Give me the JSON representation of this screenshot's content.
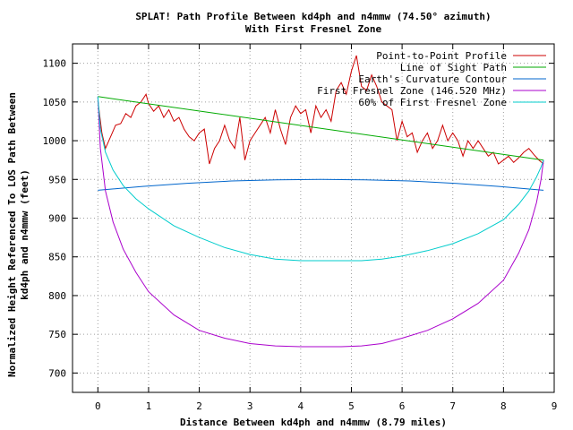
{
  "chart_data": {
    "type": "line",
    "title_line1": "SPLAT! Path Profile Between kd4ph and n4mmw (74.50° azimuth)",
    "title_line2": "With First Fresnel Zone",
    "xlabel": "Distance Between kd4ph and n4mmw (8.79 miles)",
    "ylabel_line1": "Normalized Height Referenced To LOS Path Between",
    "ylabel_line2": "kd4ph and n4mmw (feet)",
    "xlim": [
      -0.5,
      9
    ],
    "ylim": [
      675,
      1125
    ],
    "xticks": [
      "0",
      "1",
      "2",
      "3",
      "4",
      "5",
      "6",
      "7",
      "8",
      "9"
    ],
    "yticks": [
      "700",
      "750",
      "800",
      "850",
      "900",
      "950",
      "1000",
      "1050",
      "1100"
    ],
    "grid": true,
    "legend_position": "top-right",
    "series": [
      {
        "name": "Point-to-Point Profile",
        "color": "#cc0000",
        "x": [
          0.0,
          0.08,
          0.15,
          0.25,
          0.35,
          0.45,
          0.55,
          0.65,
          0.75,
          0.85,
          0.95,
          1.0,
          1.1,
          1.2,
          1.3,
          1.4,
          1.5,
          1.6,
          1.7,
          1.8,
          1.9,
          2.0,
          2.1,
          2.2,
          2.3,
          2.4,
          2.5,
          2.6,
          2.7,
          2.8,
          2.9,
          3.0,
          3.1,
          3.2,
          3.3,
          3.4,
          3.5,
          3.6,
          3.7,
          3.8,
          3.9,
          4.0,
          4.1,
          4.2,
          4.3,
          4.4,
          4.5,
          4.6,
          4.7,
          4.8,
          4.9,
          5.0,
          5.1,
          5.2,
          5.3,
          5.4,
          5.5,
          5.6,
          5.7,
          5.8,
          5.9,
          6.0,
          6.1,
          6.2,
          6.3,
          6.4,
          6.5,
          6.6,
          6.7,
          6.8,
          6.9,
          7.0,
          7.1,
          7.2,
          7.3,
          7.4,
          7.5,
          7.6,
          7.7,
          7.8,
          7.9,
          8.0,
          8.1,
          8.2,
          8.3,
          8.4,
          8.5,
          8.6,
          8.7,
          8.79
        ],
        "y": [
          1052,
          1010,
          990,
          1005,
          1020,
          1022,
          1035,
          1030,
          1045,
          1050,
          1060,
          1048,
          1038,
          1045,
          1030,
          1040,
          1025,
          1030,
          1015,
          1005,
          1000,
          1010,
          1015,
          970,
          990,
          1000,
          1020,
          1000,
          990,
          1030,
          975,
          1000,
          1010,
          1020,
          1030,
          1010,
          1040,
          1015,
          995,
          1030,
          1045,
          1035,
          1040,
          1010,
          1045,
          1030,
          1040,
          1025,
          1065,
          1075,
          1060,
          1090,
          1110,
          1070,
          1065,
          1085,
          1070,
          1050,
          1045,
          1040,
          1000,
          1025,
          1005,
          1010,
          985,
          1000,
          1010,
          990,
          1000,
          1020,
          1000,
          1010,
          1000,
          980,
          1000,
          990,
          1000,
          990,
          980,
          985,
          970,
          975,
          980,
          972,
          978,
          985,
          990,
          982,
          975,
          970
        ]
      },
      {
        "name": "Line of Sight Path",
        "color": "#00aa00",
        "x": [
          0.0,
          8.79
        ],
        "y": [
          1057,
          975
        ]
      },
      {
        "name": "Earth's Curvature Contour",
        "color": "#0066cc",
        "x": [
          0.0,
          0.88,
          1.76,
          2.64,
          3.52,
          4.4,
          5.27,
          6.15,
          7.03,
          7.91,
          8.79
        ],
        "y": [
          936,
          941,
          945,
          948,
          949.5,
          950,
          949.5,
          948,
          945,
          941,
          936
        ]
      },
      {
        "name": "First Fresnel Zone (146.520 MHz)",
        "color": "#aa00cc",
        "x": [
          0.0,
          0.05,
          0.15,
          0.3,
          0.5,
          0.75,
          1.0,
          1.5,
          2.0,
          2.5,
          3.0,
          3.5,
          4.0,
          4.4,
          4.8,
          5.2,
          5.6,
          6.0,
          6.5,
          7.0,
          7.5,
          8.0,
          8.3,
          8.5,
          8.65,
          8.74,
          8.79
        ],
        "y": [
          1057,
          990,
          935,
          895,
          860,
          830,
          805,
          775,
          755,
          745,
          738,
          735,
          734,
          734,
          734,
          735,
          738,
          745,
          755,
          770,
          790,
          820,
          855,
          885,
          920,
          950,
          975
        ]
      },
      {
        "name": "60% of First Fresnel Zone",
        "color": "#00cccc",
        "x": [
          0.0,
          0.05,
          0.15,
          0.3,
          0.5,
          0.75,
          1.0,
          1.5,
          2.0,
          2.5,
          3.0,
          3.5,
          4.0,
          4.4,
          4.8,
          5.2,
          5.6,
          6.0,
          6.5,
          7.0,
          7.5,
          8.0,
          8.3,
          8.5,
          8.65,
          8.74,
          8.79
        ],
        "y": [
          1057,
          1015,
          985,
          962,
          942,
          925,
          912,
          890,
          875,
          862,
          853,
          847,
          845,
          845,
          845,
          845,
          847,
          851,
          858,
          867,
          880,
          898,
          918,
          935,
          953,
          966,
          975
        ]
      }
    ]
  }
}
